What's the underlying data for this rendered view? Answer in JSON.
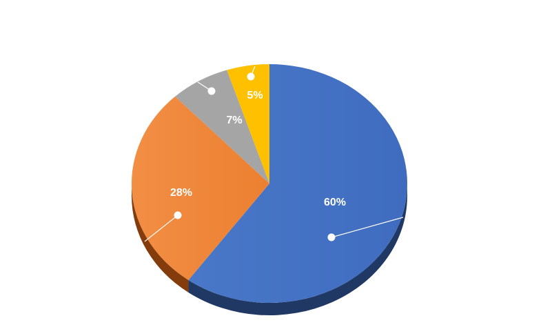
{
  "chart_data": {
    "type": "pie",
    "style": "3d",
    "title": "",
    "slices": [
      {
        "label": "60%",
        "value": 60,
        "color": "#4472C4",
        "side_color": "#1F3864"
      },
      {
        "label": "28%",
        "value": 28,
        "color": "#ED7D31",
        "side_color": "#843C0C"
      },
      {
        "label": "7%",
        "value": 7,
        "color": "#A5A5A5",
        "side_color": "#595959"
      },
      {
        "label": "5%",
        "value": 5,
        "color": "#FFC000",
        "side_color": "#7F6000"
      }
    ]
  }
}
